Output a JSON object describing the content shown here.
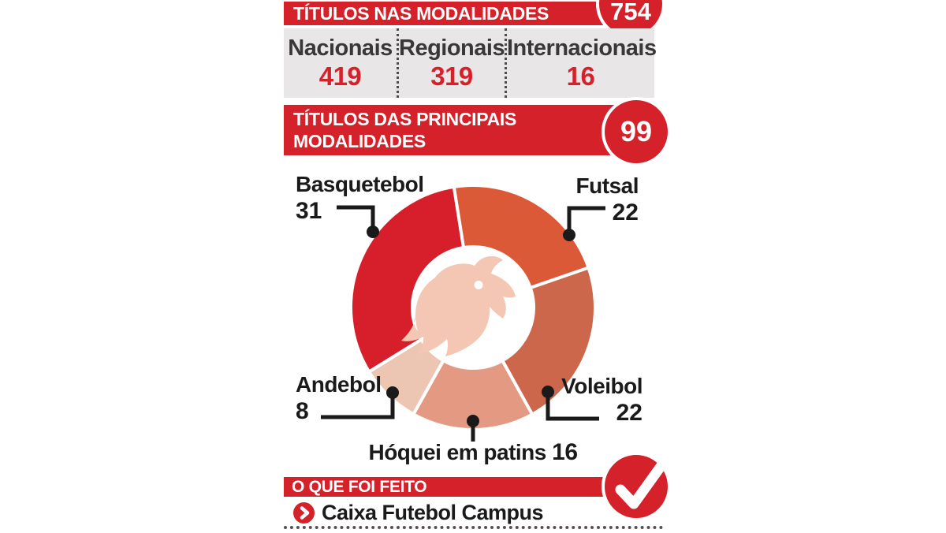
{
  "colors": {
    "accent_red": "#d5212a",
    "gray_box": "#e9e6e7",
    "label_dark": "#383838",
    "line_black": "#1a1a1a",
    "eagle_watermark": "#f3c7b4"
  },
  "header": {
    "title": "TÍTULOS NAS MODALIDADES",
    "badge_total": "754"
  },
  "totals": {
    "columns": [
      {
        "label": "Nacionais",
        "value": "419"
      },
      {
        "label": "Regionais",
        "value": "319"
      },
      {
        "label": "Internacionais",
        "value": "16"
      }
    ]
  },
  "principais": {
    "title_line1": "TÍTULOS DAS PRINCIPAIS",
    "title_line2": "MODALIDADES",
    "badge_total": "99"
  },
  "chart_data": {
    "type": "pie",
    "subtype": "donut",
    "title": "Títulos das principais modalidades",
    "total": 99,
    "start_angle_deg": -9,
    "direction": "clockwise",
    "inner_radius_ratio": 0.5,
    "center_emblem": "benfica-eagle-watermark",
    "legend_position": "callout-labels",
    "segments": [
      {
        "name": "Futsal",
        "value": 22,
        "color": "#dc5938"
      },
      {
        "name": "Voleibol",
        "value": 22,
        "color": "#cd674c"
      },
      {
        "name": "Hóquei em patins",
        "value": 16,
        "color": "#e49a82"
      },
      {
        "name": "Andebol",
        "value": 8,
        "color": "#edc5b3"
      },
      {
        "name": "Basquetebol",
        "value": 31,
        "color": "#d61f2a"
      }
    ]
  },
  "done": {
    "title": "O QUE FOI FEITO",
    "items": [
      {
        "label": "Caixa Futebol Campus"
      }
    ]
  }
}
